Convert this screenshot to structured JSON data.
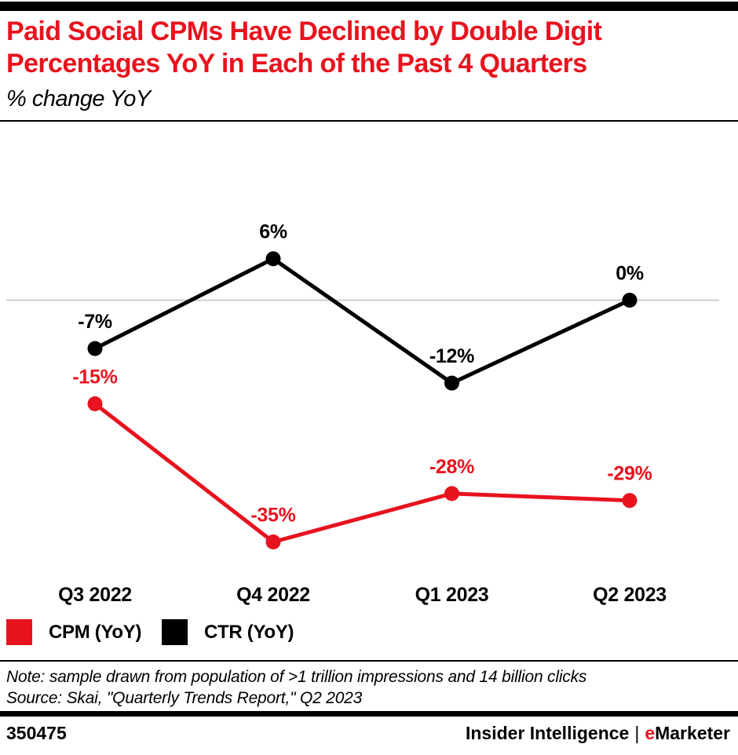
{
  "header": {
    "title_lines": [
      "Paid Social CPMs Have Declined by Double Digit",
      "Percentages YoY in Each of the Past 4 Quarters"
    ],
    "subtitle": "% change YoY"
  },
  "chart_data": {
    "type": "line",
    "title": "Paid Social CPMs Have Declined by Double Digit Percentages YoY in Each of the Past 4 Quarters",
    "subtitle": "% change YoY",
    "categories": [
      "Q3 2022",
      "Q4 2022",
      "Q1 2023",
      "Q2 2023"
    ],
    "series": [
      {
        "name": "CPM (YoY)",
        "color": "#e7131e",
        "values": [
          -15,
          -35,
          -28,
          -29
        ],
        "labels": [
          "-15%",
          "-35%",
          "-28%",
          "-29%"
        ]
      },
      {
        "name": "CTR (YoY)",
        "color": "#000000",
        "values": [
          -7,
          6,
          -12,
          0
        ],
        "labels": [
          "-7%",
          "6%",
          "-12%",
          "0%"
        ]
      }
    ],
    "xlabel": "",
    "ylabel": "% change YoY",
    "ylim": [
      -40,
      10
    ],
    "grid": false,
    "zero_line": true,
    "zero_line_color": "#cdcdcd",
    "legend_position": "bottom-left"
  },
  "footer": {
    "note": "Note: sample drawn from population of >1 trillion impressions and 14 billion clicks",
    "source": "Source: Skai, \"Quarterly Trends Report,\" Q2 2023",
    "chart_id": "350475",
    "brand_left": "Insider Intelligence",
    "brand_separator": "|",
    "brand_accent_letter": "e",
    "brand_rest": "Marketer"
  },
  "colors": {
    "accent_red": "#e7131e",
    "black": "#000000",
    "zero_line": "#cdcdcd"
  }
}
